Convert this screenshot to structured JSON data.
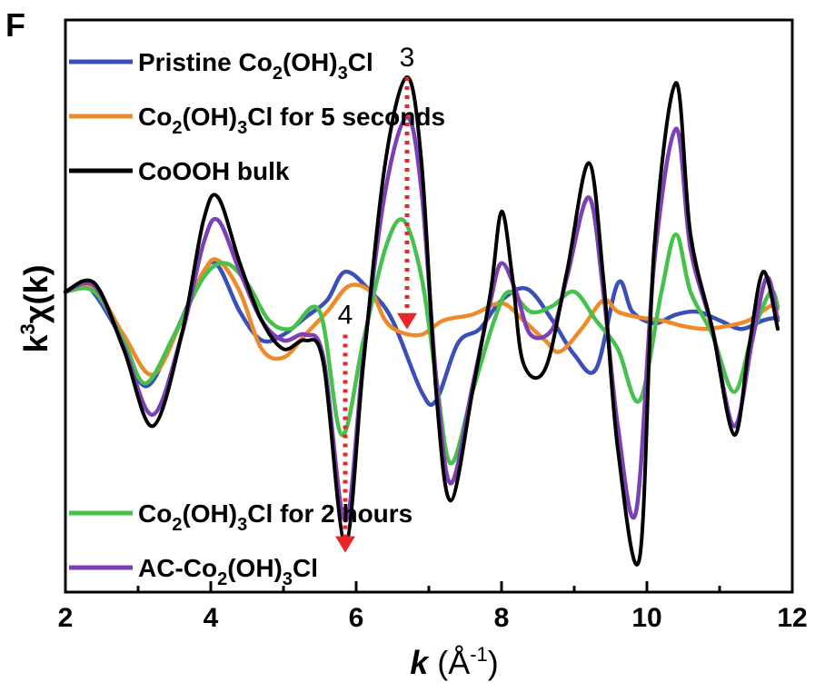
{
  "chart_data": {
    "type": "line",
    "panel_label": "F",
    "xlabel": {
      "main": "k",
      "unit_open": " (Å",
      "unit_sup": "-1",
      "unit_close": ")"
    },
    "ylabel": {
      "k": "k",
      "sup": "3",
      "rest": "χ(k)"
    },
    "xlim": [
      2,
      12
    ],
    "ylim": [
      -1,
      1
    ],
    "xticks": [
      "2",
      "4",
      "6",
      "8",
      "10",
      "12"
    ],
    "yticks": "none",
    "grid": false,
    "legend_top": [
      {
        "series": 0,
        "parts": [
          [
            "Pristine Co",
            ""
          ],
          [
            "2",
            "sub"
          ],
          [
            "(OH)",
            ""
          ],
          [
            "3",
            "sub"
          ],
          [
            "Cl",
            ""
          ]
        ]
      },
      {
        "series": 1,
        "parts": [
          [
            "Co",
            ""
          ],
          [
            "2",
            "sub"
          ],
          [
            "(OH)",
            ""
          ],
          [
            "3",
            "sub"
          ],
          [
            "Cl for 5 seconds",
            ""
          ]
        ]
      },
      {
        "series": 2,
        "parts": [
          [
            "CoOOH bulk",
            ""
          ]
        ]
      }
    ],
    "legend_bottom": [
      {
        "series": 3,
        "parts": [
          [
            "Co",
            ""
          ],
          [
            "2",
            "sub"
          ],
          [
            "(OH)",
            ""
          ],
          [
            "3",
            "sub"
          ],
          [
            "Cl for 2 hours",
            ""
          ]
        ]
      },
      {
        "series": 4,
        "parts": [
          [
            "AC-Co",
            ""
          ],
          [
            "2",
            "sub"
          ],
          [
            "(OH)",
            ""
          ],
          [
            "3",
            "sub"
          ],
          [
            "Cl",
            ""
          ]
        ]
      }
    ],
    "annotations": [
      {
        "text": "3",
        "x": 6.7,
        "y_from": 0.8,
        "y_to": -0.05
      },
      {
        "text": "4",
        "x": 5.85,
        "y_from": -0.1,
        "y_to": -0.83
      }
    ],
    "series": [
      {
        "name": "Pristine Co2(OH)3Cl",
        "color": "#3b4fb8",
        "points": [
          [
            2.0,
            0.05
          ],
          [
            2.3,
            0.07
          ],
          [
            2.7,
            -0.08
          ],
          [
            3.1,
            -0.28
          ],
          [
            3.5,
            -0.1
          ],
          [
            3.9,
            0.12
          ],
          [
            4.1,
            0.14
          ],
          [
            4.4,
            -0.02
          ],
          [
            4.7,
            -0.12
          ],
          [
            5.0,
            -0.1
          ],
          [
            5.3,
            -0.04
          ],
          [
            5.6,
            0.02
          ],
          [
            5.85,
            0.12
          ],
          [
            6.2,
            0.05
          ],
          [
            6.5,
            -0.05
          ],
          [
            6.9,
            -0.3
          ],
          [
            7.1,
            -0.33
          ],
          [
            7.4,
            -0.13
          ],
          [
            7.7,
            -0.08
          ],
          [
            8.0,
            0.02
          ],
          [
            8.35,
            0.06
          ],
          [
            8.7,
            -0.05
          ],
          [
            9.0,
            -0.17
          ],
          [
            9.3,
            -0.22
          ],
          [
            9.6,
            0.08
          ],
          [
            9.8,
            -0.02
          ],
          [
            10.1,
            -0.06
          ],
          [
            10.4,
            -0.03
          ],
          [
            10.7,
            -0.02
          ],
          [
            11.0,
            -0.05
          ],
          [
            11.3,
            -0.08
          ],
          [
            11.6,
            -0.05
          ],
          [
            11.8,
            -0.04
          ]
        ]
      },
      {
        "name": "Co2(OH)3Cl for 5 seconds",
        "color": "#ed8b2a",
        "points": [
          [
            2.0,
            0.05
          ],
          [
            2.4,
            0.06
          ],
          [
            2.8,
            -0.1
          ],
          [
            3.2,
            -0.24
          ],
          [
            3.6,
            -0.05
          ],
          [
            3.9,
            0.12
          ],
          [
            4.1,
            0.16
          ],
          [
            4.4,
            0.05
          ],
          [
            4.7,
            -0.15
          ],
          [
            5.0,
            -0.18
          ],
          [
            5.3,
            -0.1
          ],
          [
            5.6,
            -0.02
          ],
          [
            5.9,
            0.07
          ],
          [
            6.2,
            0.05
          ],
          [
            6.4,
            -0.05
          ],
          [
            6.6,
            -0.09
          ],
          [
            6.9,
            -0.1
          ],
          [
            7.2,
            -0.05
          ],
          [
            7.6,
            -0.03
          ],
          [
            8.0,
            0.01
          ],
          [
            8.3,
            -0.05
          ],
          [
            8.6,
            -0.12
          ],
          [
            8.8,
            -0.16
          ],
          [
            9.1,
            -0.08
          ],
          [
            9.4,
            0.02
          ],
          [
            9.6,
            -0.02
          ],
          [
            9.9,
            -0.04
          ],
          [
            10.2,
            -0.05
          ],
          [
            10.5,
            -0.07
          ],
          [
            10.8,
            -0.08
          ],
          [
            11.1,
            -0.07
          ],
          [
            11.4,
            -0.05
          ],
          [
            11.7,
            0.0
          ],
          [
            11.8,
            -0.01
          ]
        ]
      },
      {
        "name": "CoOOH bulk",
        "color": "#000000",
        "points": [
          [
            2.0,
            0.05
          ],
          [
            2.4,
            0.08
          ],
          [
            2.8,
            -0.15
          ],
          [
            3.2,
            -0.42
          ],
          [
            3.6,
            -0.1
          ],
          [
            3.9,
            0.3
          ],
          [
            4.1,
            0.38
          ],
          [
            4.4,
            0.15
          ],
          [
            4.7,
            -0.05
          ],
          [
            5.0,
            -0.15
          ],
          [
            5.3,
            -0.12
          ],
          [
            5.55,
            -0.2
          ],
          [
            5.85,
            -0.83
          ],
          [
            6.1,
            -0.2
          ],
          [
            6.4,
            0.5
          ],
          [
            6.7,
            0.8
          ],
          [
            6.9,
            0.5
          ],
          [
            7.1,
            -0.3
          ],
          [
            7.3,
            -0.68
          ],
          [
            7.6,
            -0.3
          ],
          [
            7.85,
            0.05
          ],
          [
            8.0,
            0.33
          ],
          [
            8.15,
            0.1
          ],
          [
            8.3,
            -0.2
          ],
          [
            8.6,
            -0.22
          ],
          [
            8.9,
            0.12
          ],
          [
            9.2,
            0.5
          ],
          [
            9.4,
            0.1
          ],
          [
            9.6,
            -0.5
          ],
          [
            9.9,
            -0.88
          ],
          [
            10.1,
            0.2
          ],
          [
            10.4,
            0.78
          ],
          [
            10.6,
            0.25
          ],
          [
            10.9,
            -0.08
          ],
          [
            11.2,
            -0.45
          ],
          [
            11.4,
            -0.15
          ],
          [
            11.6,
            0.12
          ],
          [
            11.8,
            -0.08
          ]
        ]
      },
      {
        "name": "Co2(OH)3Cl for 2 hours",
        "color": "#46c14e",
        "points": [
          [
            2.0,
            0.05
          ],
          [
            2.4,
            0.05
          ],
          [
            2.8,
            -0.12
          ],
          [
            3.1,
            -0.27
          ],
          [
            3.5,
            -0.1
          ],
          [
            3.9,
            0.1
          ],
          [
            4.2,
            0.15
          ],
          [
            4.5,
            0.08
          ],
          [
            4.8,
            -0.05
          ],
          [
            5.1,
            -0.08
          ],
          [
            5.5,
            -0.02
          ],
          [
            5.8,
            -0.45
          ],
          [
            6.1,
            -0.12
          ],
          [
            6.4,
            0.2
          ],
          [
            6.65,
            0.3
          ],
          [
            6.9,
            0.1
          ],
          [
            7.1,
            -0.25
          ],
          [
            7.3,
            -0.55
          ],
          [
            7.6,
            -0.3
          ],
          [
            7.9,
            -0.05
          ],
          [
            8.1,
            0.05
          ],
          [
            8.4,
            -0.02
          ],
          [
            8.7,
            0.0
          ],
          [
            9.0,
            0.05
          ],
          [
            9.3,
            -0.05
          ],
          [
            9.6,
            -0.15
          ],
          [
            9.9,
            -0.33
          ],
          [
            10.2,
            0.05
          ],
          [
            10.4,
            0.25
          ],
          [
            10.6,
            0.05
          ],
          [
            10.9,
            -0.1
          ],
          [
            11.2,
            -0.3
          ],
          [
            11.45,
            -0.1
          ],
          [
            11.7,
            0.05
          ],
          [
            11.8,
            0.0
          ]
        ]
      },
      {
        "name": "AC-Co2(OH)3Cl",
        "color": "#7d3fb4",
        "points": [
          [
            2.0,
            0.05
          ],
          [
            2.4,
            0.07
          ],
          [
            2.8,
            -0.14
          ],
          [
            3.2,
            -0.38
          ],
          [
            3.6,
            -0.1
          ],
          [
            3.9,
            0.22
          ],
          [
            4.1,
            0.3
          ],
          [
            4.4,
            0.12
          ],
          [
            4.7,
            -0.05
          ],
          [
            5.0,
            -0.12
          ],
          [
            5.3,
            -0.1
          ],
          [
            5.55,
            -0.18
          ],
          [
            5.85,
            -0.75
          ],
          [
            6.1,
            -0.18
          ],
          [
            6.4,
            0.4
          ],
          [
            6.7,
            0.66
          ],
          [
            6.9,
            0.4
          ],
          [
            7.1,
            -0.25
          ],
          [
            7.3,
            -0.62
          ],
          [
            7.6,
            -0.28
          ],
          [
            7.85,
            0.02
          ],
          [
            8.0,
            0.15
          ],
          [
            8.2,
            0.05
          ],
          [
            8.4,
            -0.1
          ],
          [
            8.7,
            -0.08
          ],
          [
            8.9,
            0.1
          ],
          [
            9.2,
            0.38
          ],
          [
            9.4,
            0.05
          ],
          [
            9.6,
            -0.42
          ],
          [
            9.85,
            -0.72
          ],
          [
            10.1,
            0.15
          ],
          [
            10.4,
            0.62
          ],
          [
            10.6,
            0.2
          ],
          [
            10.9,
            -0.08
          ],
          [
            11.2,
            -0.42
          ],
          [
            11.45,
            -0.12
          ],
          [
            11.65,
            0.1
          ],
          [
            11.8,
            -0.05
          ]
        ]
      }
    ]
  }
}
